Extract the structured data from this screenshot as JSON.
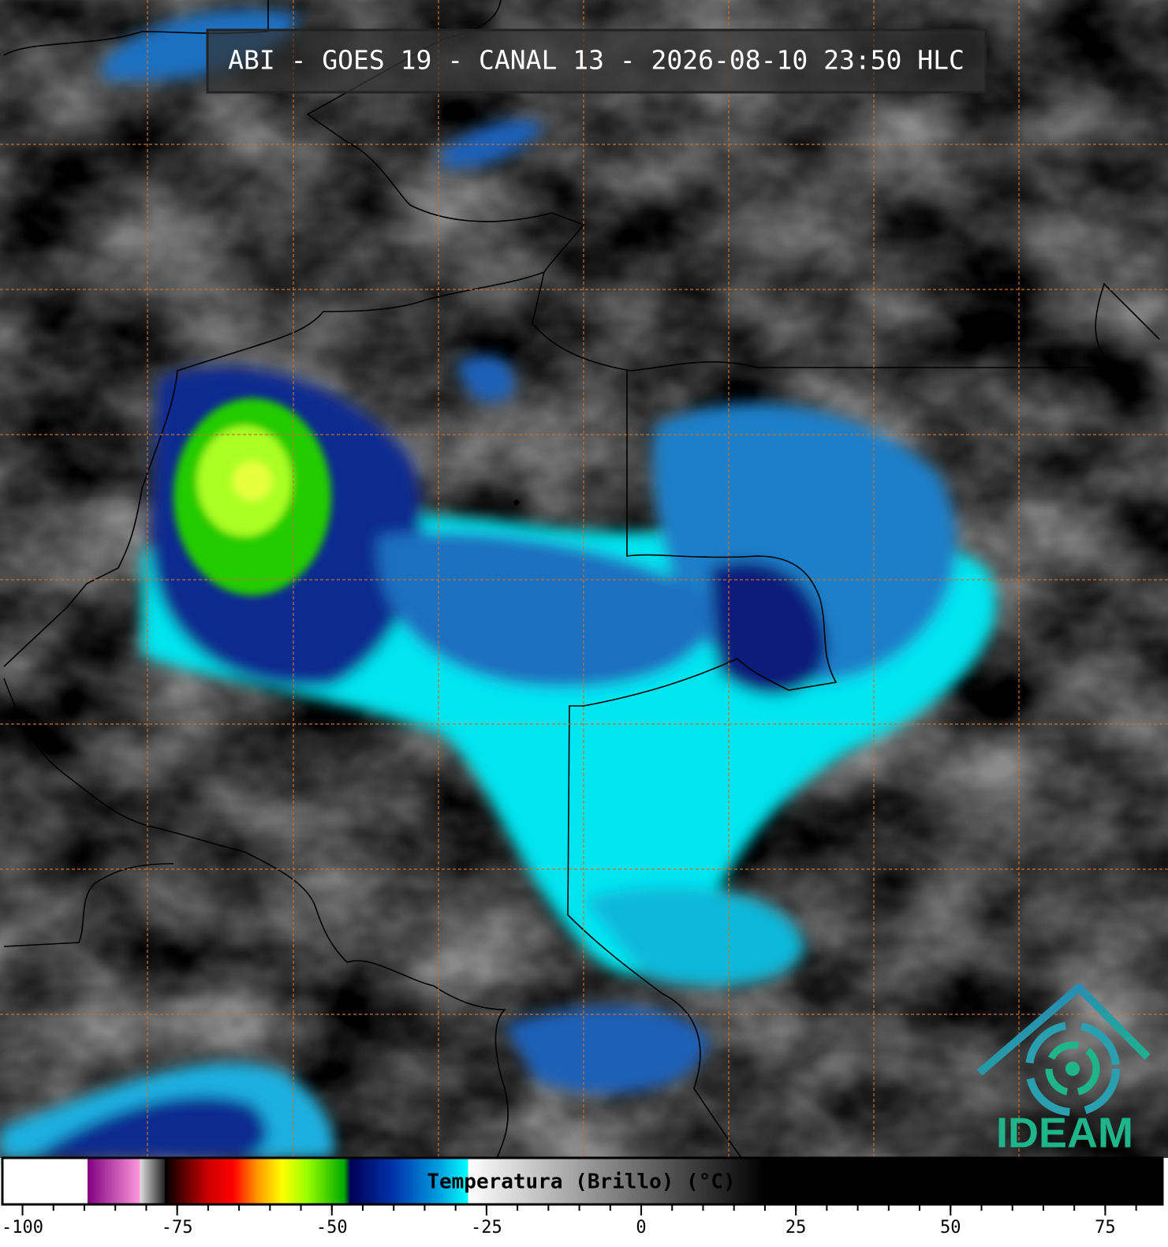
{
  "header": {
    "title": "ABI - GOES 19 - CANAL 13 - 2026-08-10 23:50 HLC"
  },
  "colorbar": {
    "label": "Temperatura (Brillo) (°C)",
    "lim": [
      -103,
      84
    ],
    "ticks": [
      -100,
      -75,
      -50,
      -25,
      0,
      25,
      50,
      75
    ],
    "minor_tick_step": 5,
    "colormap": [
      {
        "value": -103,
        "color": "#ffffff"
      },
      {
        "value": -89.5,
        "color": "#ffffff"
      },
      {
        "value": -89.5,
        "color": "#800080"
      },
      {
        "value": -81,
        "color": "#ff99dd"
      },
      {
        "value": -81,
        "color": "#dddddd"
      },
      {
        "value": -77,
        "color": "#222222"
      },
      {
        "value": -77,
        "color": "#000000"
      },
      {
        "value": -70,
        "color": "#cc0000"
      },
      {
        "value": -66,
        "color": "#ff0000"
      },
      {
        "value": -62,
        "color": "#ff9900"
      },
      {
        "value": -58,
        "color": "#ffff00"
      },
      {
        "value": -54,
        "color": "#99ff00"
      },
      {
        "value": -48,
        "color": "#00aa00"
      },
      {
        "value": -47,
        "color": "#000055"
      },
      {
        "value": -40,
        "color": "#0033aa"
      },
      {
        "value": -33,
        "color": "#0099dd"
      },
      {
        "value": -28,
        "color": "#00ffff"
      },
      {
        "value": -28,
        "color": "#ffffff"
      },
      {
        "value": 20,
        "color": "#000000"
      },
      {
        "value": 84,
        "color": "#000000"
      }
    ]
  },
  "logo": {
    "text": "IDEAM"
  }
}
